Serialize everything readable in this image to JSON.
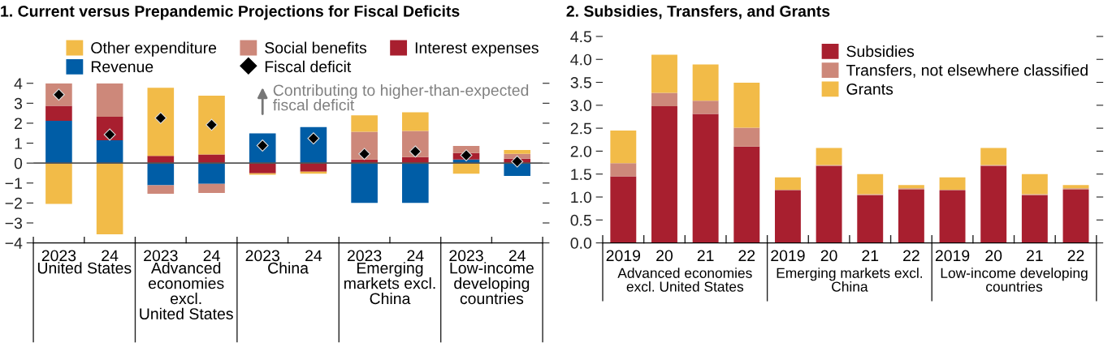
{
  "chart_data": [
    {
      "type": "bar",
      "title": "1. Current versus Prepandemic Projections for Fiscal Deficits",
      "stacked": true,
      "categories": [
        "2023",
        "24",
        "2023",
        "24",
        "2023",
        "24",
        "2023",
        "24",
        "2023",
        "24"
      ],
      "series": [
        {
          "name": "Revenue",
          "color": "#005da6",
          "values": [
            2.12,
            1.14,
            -1.11,
            -1.04,
            1.49,
            1.8,
            -1.99,
            -1.99,
            0.18,
            -0.64
          ]
        },
        {
          "name": "Interest expenses",
          "color": "#a81f2f",
          "values": [
            0.75,
            1.18,
            0.36,
            0.43,
            -0.51,
            -0.43,
            0.18,
            0.3,
            0.32,
            0.22
          ]
        },
        {
          "name": "Social benefits",
          "color": "#cd887a",
          "values": [
            1.13,
            1.68,
            -0.43,
            -0.46,
            null,
            null,
            1.39,
            1.31,
            0.36,
            0.24
          ]
        },
        {
          "name": "Other expenditure",
          "color": "#f2bb48",
          "values": [
            -2.05,
            -3.57,
            3.42,
            2.95,
            -0.07,
            -0.1,
            0.82,
            0.94,
            -0.53,
            0.2
          ]
        },
        {
          "name": "Fiscal deficit",
          "type": "scatter",
          "color": "#000000",
          "values": [
            3.43,
            1.43,
            2.26,
            1.92,
            0.88,
            1.24,
            0.46,
            0.58,
            0.39,
            0.08
          ]
        }
      ],
      "ylim": [
        -4,
        4
      ],
      "yticks": [
        {
          "value": -4,
          "label": "−4"
        },
        {
          "value": -3,
          "label": "−3"
        },
        {
          "value": -2,
          "label": "−2"
        },
        {
          "value": -1,
          "label": "−1"
        },
        0,
        1,
        2,
        3,
        4
      ],
      "ref_lines": [
        {
          "axis": "y",
          "value": 0,
          "color": "#555555"
        }
      ],
      "marker": "diamond",
      "grid": false,
      "legend": "top",
      "annotations": [
        "Contributing to higher-than-expected\nfiscal deficit",
        "United States",
        "Advanced\neconomies\nexcl.\nUnited States",
        "China",
        "Emerging\nmarkets excl.\nChina",
        "Low-income\ndeveloping\ncountries"
      ]
    },
    {
      "type": "bar",
      "title": "2. Subsidies, Transfers, and Grants",
      "stacked": true,
      "categories": [
        "2019",
        "20",
        "21",
        "22",
        "2019",
        "20",
        "21",
        "22",
        "2019",
        "20",
        "21",
        "22"
      ],
      "series": [
        {
          "name": "Subsidies",
          "color": "#a81f2f",
          "values": [
            1.45,
            2.98,
            2.81,
            2.1,
            1.14,
            1.68,
            1.04,
            1.16,
            1.14,
            1.68,
            1.04,
            1.16
          ]
        },
        {
          "name": "Transfers, not elsewhere classified",
          "color": "#cd887a",
          "values": [
            0.29,
            0.29,
            0.29,
            0.41,
            0.02,
            0.02,
            0.02,
            0.03,
            0.02,
            0.02,
            0.02,
            0.03
          ]
        },
        {
          "name": "Grants",
          "color": "#f2bb48",
          "values": [
            0.71,
            0.83,
            0.79,
            0.98,
            0.27,
            0.37,
            0.44,
            0.07,
            0.27,
            0.37,
            0.44,
            0.07
          ]
        }
      ],
      "ylim": [
        0,
        4.5
      ],
      "yticks": [
        {
          "value": 0,
          "label": "0.0"
        },
        {
          "value": 0.5,
          "label": "0.5"
        },
        {
          "value": 1,
          "label": "1.0"
        },
        {
          "value": 1.5,
          "label": "1.5"
        },
        {
          "value": 2,
          "label": "2.0"
        },
        {
          "value": 2.5,
          "label": "2.5"
        },
        {
          "value": 3,
          "label": "3.0"
        },
        {
          "value": 3.5,
          "label": "3.5"
        },
        {
          "value": 4,
          "label": "4.0"
        },
        {
          "value": 4.5,
          "label": "4.5"
        }
      ],
      "grid": false,
      "legend": "top right",
      "annotations": [
        "Advanced economies\nexcl. United States",
        "Emerging markets excl.\nChina",
        "Low-income developing\ncountries"
      ]
    }
  ]
}
